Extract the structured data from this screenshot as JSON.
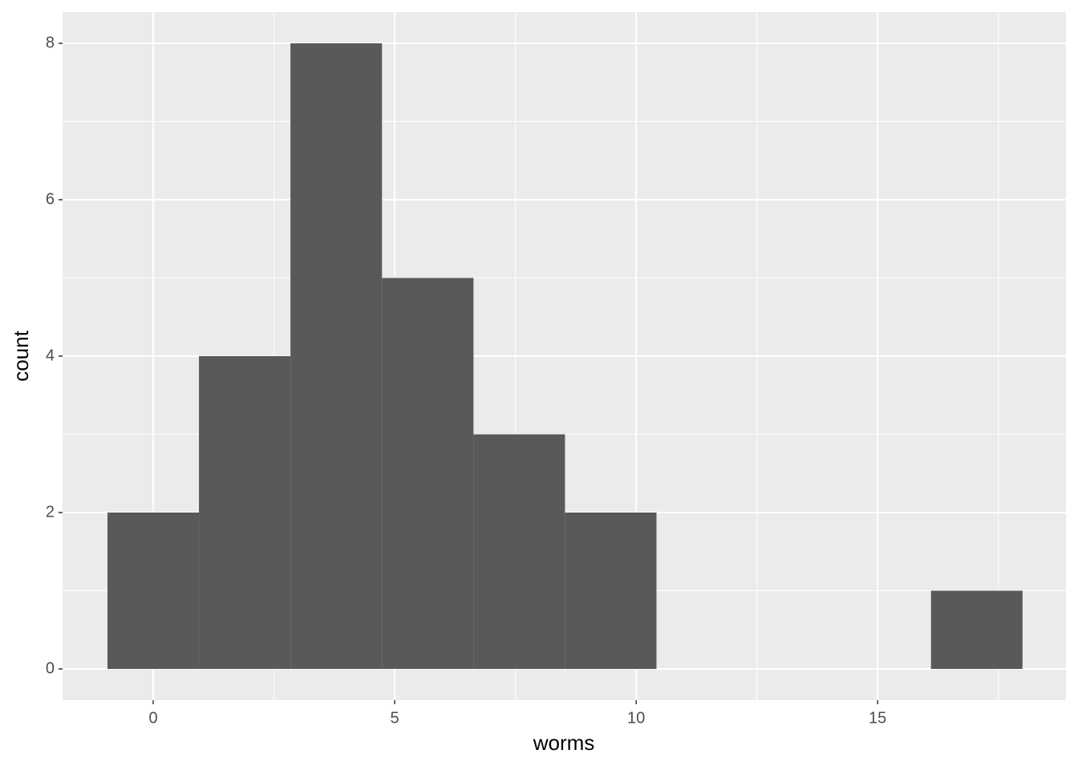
{
  "chart_data": {
    "type": "histogram",
    "x_label": "worms",
    "y_label": "count",
    "bins": [
      -0.947,
      0.947,
      2.842,
      4.737,
      6.632,
      8.526,
      10.421,
      12.316,
      14.211,
      16.105,
      18.0
    ],
    "values": [
      2,
      4,
      8,
      5,
      3,
      2,
      0,
      0,
      0,
      1
    ],
    "color": "#595959",
    "xlim": [
      -1.877,
      18.9
    ],
    "xticks": [
      0,
      5,
      10,
      15
    ],
    "ylim": [
      -0.4,
      8.4
    ],
    "yticks": [
      0,
      2,
      4,
      6,
      8
    ],
    "grid": true
  }
}
